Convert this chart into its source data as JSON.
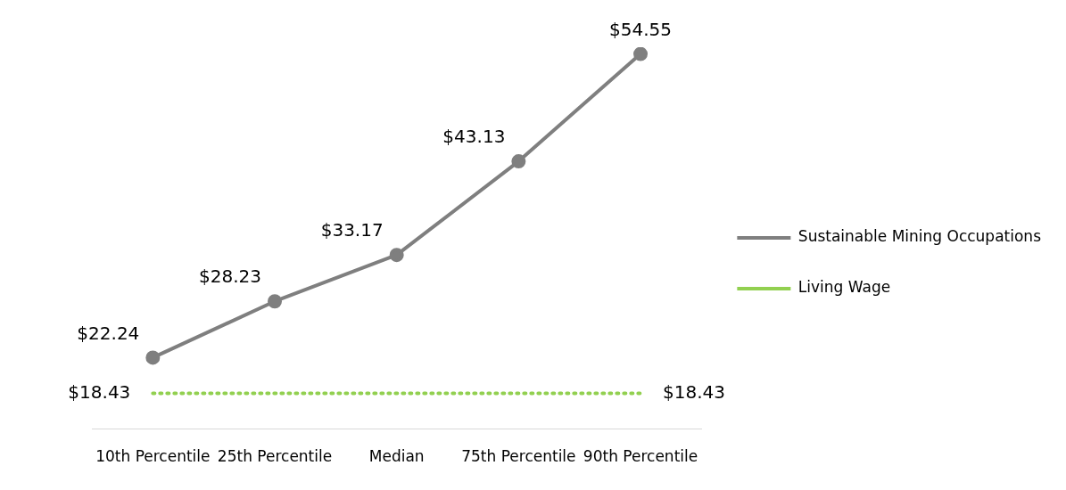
{
  "chart_data": {
    "type": "line",
    "categories": [
      "10th Percentile",
      "25th Percentile",
      "Median",
      "75th Percentile",
      "90th Percentile"
    ],
    "series": [
      {
        "name": "Sustainable Mining Occupations",
        "color": "#7f7f7f",
        "values": [
          22.24,
          28.23,
          33.17,
          43.13,
          54.55
        ],
        "value_labels": [
          "$22.24",
          "$28.23",
          "$33.17",
          "$43.13",
          "$54.55"
        ],
        "marker": "circle",
        "line_style": "solid"
      },
      {
        "name": "Living Wage",
        "color": "#92d050",
        "values": [
          18.43,
          18.43,
          18.43,
          18.43,
          18.43
        ],
        "value_labels": [
          "$18.43",
          null,
          null,
          null,
          "$18.43"
        ],
        "marker": "none",
        "line_style": "dotted"
      }
    ],
    "grid": false,
    "legend": "right"
  }
}
